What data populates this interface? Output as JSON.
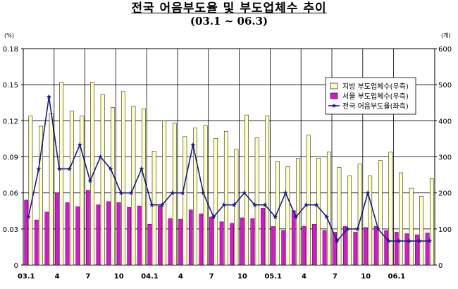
{
  "chart_data": {
    "type": "bar",
    "title": "전국 어음부도율 및 부도업체수 추이",
    "subtitle": "(03.1 ~ 06.3)",
    "left_unit": "(%)",
    "right_unit": "(개)",
    "y_left": {
      "min": 0,
      "max": 0.18,
      "ticks": [
        "0",
        "0.03",
        "0.06",
        "0.09",
        "0.12",
        "0.15",
        "0.18"
      ]
    },
    "y_right": {
      "min": 0,
      "max": 600,
      "ticks": [
        "0",
        "100",
        "200",
        "300",
        "400",
        "500",
        "600"
      ]
    },
    "x_tick_labels": [
      {
        "index": 0,
        "label": "03.1"
      },
      {
        "index": 3,
        "label": "4"
      },
      {
        "index": 6,
        "label": "7"
      },
      {
        "index": 9,
        "label": "10"
      },
      {
        "index": 12,
        "label": "04.1"
      },
      {
        "index": 15,
        "label": "4"
      },
      {
        "index": 18,
        "label": "7"
      },
      {
        "index": 21,
        "label": "10"
      },
      {
        "index": 24,
        "label": "05.1"
      },
      {
        "index": 27,
        "label": "4"
      },
      {
        "index": 30,
        "label": "7"
      },
      {
        "index": 33,
        "label": "10"
      },
      {
        "index": 36,
        "label": "06.1"
      }
    ],
    "grid": true,
    "legend_position": "top-right",
    "series": [
      {
        "name": "지방 부도업체수(우측)",
        "kind": "bar",
        "axis": "right",
        "color": "#ffffc0",
        "values": [
          413,
          385,
          420,
          507,
          427,
          413,
          507,
          473,
          437,
          481,
          440,
          433,
          316,
          400,
          393,
          356,
          380,
          387,
          351,
          371,
          321,
          416,
          353,
          414,
          287,
          273,
          296,
          360,
          296,
          313,
          271,
          247,
          280,
          247,
          290,
          313,
          256,
          213,
          191,
          239
        ]
      },
      {
        "name": "서울 부도업체수(우측)",
        "kind": "bar",
        "axis": "right",
        "color": "#e010d8",
        "values": [
          180,
          125,
          147,
          200,
          173,
          162,
          207,
          167,
          176,
          173,
          160,
          164,
          113,
          164,
          129,
          127,
          153,
          142,
          133,
          120,
          116,
          131,
          129,
          158,
          107,
          96,
          151,
          107,
          113,
          96,
          91,
          107,
          91,
          104,
          107,
          96,
          91,
          87,
          84,
          89
        ]
      },
      {
        "name": "전국 어음부도율(좌측)",
        "kind": "line",
        "axis": "left",
        "color": "#1a1a8c",
        "values": [
          0.04,
          0.08,
          0.14,
          0.08,
          0.08,
          0.1,
          0.07,
          0.09,
          0.08,
          0.06,
          0.06,
          0.08,
          0.05,
          0.05,
          0.06,
          0.06,
          0.1,
          0.06,
          0.04,
          0.05,
          0.05,
          0.06,
          0.05,
          0.05,
          0.04,
          0.06,
          0.04,
          0.05,
          0.05,
          0.04,
          0.02,
          0.03,
          0.03,
          0.06,
          0.03,
          0.02,
          0.02,
          0.02,
          0.02,
          0.02
        ]
      }
    ]
  }
}
